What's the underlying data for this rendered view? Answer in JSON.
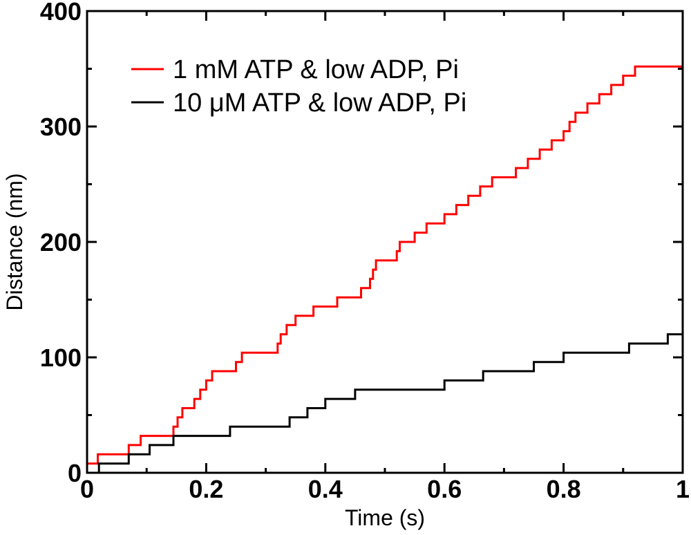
{
  "chart_data": {
    "type": "line",
    "step": true,
    "xlabel": "Time (s)",
    "ylabel": "Distance (nm)",
    "xlim": [
      0,
      1
    ],
    "ylim": [
      0,
      400
    ],
    "xticks": [
      0,
      0.2,
      0.4,
      0.6,
      0.8,
      1
    ],
    "xtick_labels": [
      "0",
      "0.2",
      "0.4",
      "0.6",
      "0.8",
      "1"
    ],
    "yticks": [
      0,
      100,
      200,
      300,
      400
    ],
    "ytick_labels": [
      "0",
      "100",
      "200",
      "300",
      "400"
    ],
    "grid": false,
    "legend_position": "top-left",
    "series": [
      {
        "name": "1 mM ATP & low ADP, Pi",
        "color": "#ff0000",
        "x": [
          0,
          0.018,
          0.07,
          0.09,
          0.145,
          0.152,
          0.16,
          0.18,
          0.19,
          0.2,
          0.21,
          0.22,
          0.25,
          0.26,
          0.28,
          0.32,
          0.325,
          0.335,
          0.35,
          0.36,
          0.38,
          0.42,
          0.46,
          0.475,
          0.48,
          0.485,
          0.52,
          0.525,
          0.55,
          0.57,
          0.6,
          0.62,
          0.64,
          0.66,
          0.68,
          0.7,
          0.72,
          0.74,
          0.76,
          0.78,
          0.8,
          0.81,
          0.82,
          0.84,
          0.86,
          0.88,
          0.9,
          0.92,
          0.93,
          0.95,
          0.975,
          1.0
        ],
        "values": [
          8,
          16,
          24,
          32,
          40,
          48,
          56,
          64,
          72,
          80,
          88,
          88,
          96,
          104,
          104,
          112,
          120,
          128,
          136,
          136,
          144,
          152,
          160,
          168,
          176,
          184,
          192,
          200,
          208,
          216,
          224,
          232,
          240,
          248,
          256,
          256,
          264,
          272,
          280,
          288,
          296,
          304,
          312,
          320,
          328,
          336,
          344,
          352,
          352,
          352,
          352,
          352
        ]
      },
      {
        "name": "10 μM ATP & low ADP, Pi",
        "color": "#000000",
        "x": [
          0,
          0.02,
          0.07,
          0.105,
          0.145,
          0.24,
          0.34,
          0.37,
          0.4,
          0.45,
          0.6,
          0.665,
          0.75,
          0.8,
          0.91,
          0.975,
          1.0
        ],
        "values": [
          0,
          8,
          16,
          24,
          32,
          40,
          48,
          56,
          64,
          72,
          80,
          88,
          96,
          104,
          112,
          120,
          120
        ]
      }
    ]
  }
}
